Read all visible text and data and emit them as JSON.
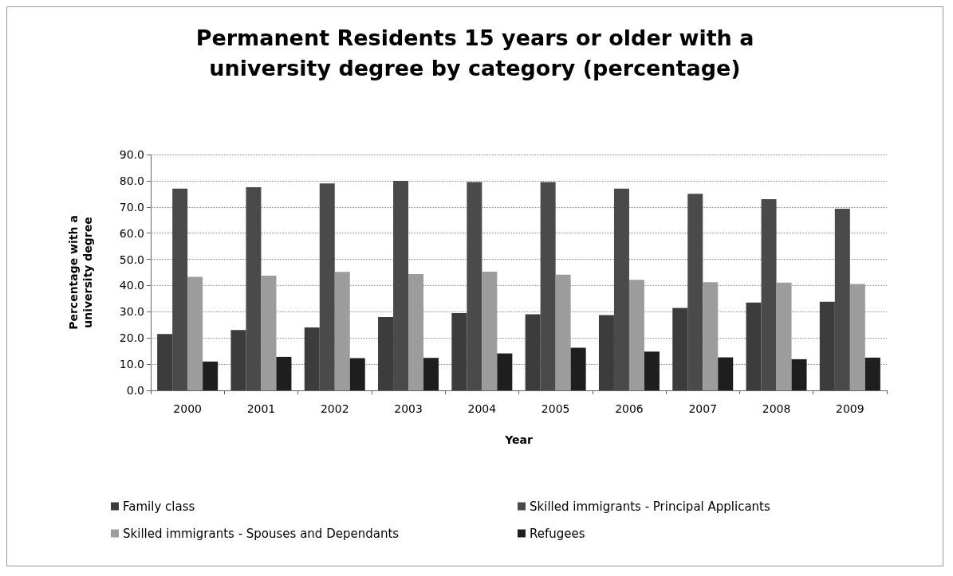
{
  "chart_data": {
    "type": "bar",
    "title": "Permanent Residents 15 years or older with a\nuniversity degree by category (percentage)",
    "xlabel": "Year",
    "ylabel": "Percentage with a\nuniversity degree",
    "categories": [
      "2000",
      "2001",
      "2002",
      "2003",
      "2004",
      "2005",
      "2006",
      "2007",
      "2008",
      "2009"
    ],
    "series": [
      {
        "name": "Family class",
        "color": "#3c3c3c",
        "values": [
          21.5,
          23.0,
          24.0,
          28.0,
          29.5,
          29.0,
          28.7,
          31.5,
          33.5,
          33.8
        ]
      },
      {
        "name": "Skilled immigrants - Principal Applicants",
        "color": "#4a4a4a",
        "values": [
          77.0,
          77.5,
          79.0,
          80.0,
          79.5,
          79.5,
          77.0,
          75.0,
          73.0,
          69.3
        ]
      },
      {
        "name": "Skilled immigrants - Spouses and Dependants",
        "color": "#9c9c9c",
        "values": [
          43.3,
          43.8,
          45.2,
          44.4,
          45.3,
          44.2,
          42.2,
          41.3,
          41.1,
          40.6
        ]
      },
      {
        "name": "Refugees",
        "color": "#1e1e1e",
        "values": [
          11.0,
          12.8,
          12.3,
          12.4,
          14.1,
          16.3,
          14.8,
          12.6,
          11.9,
          12.5
        ]
      }
    ],
    "ylim": [
      0,
      90
    ],
    "yticks": [
      {
        "value": 0,
        "label": "0.0"
      },
      {
        "value": 10,
        "label": "10.0"
      },
      {
        "value": 20,
        "label": "20.0"
      },
      {
        "value": 30,
        "label": "30.0"
      },
      {
        "value": 40,
        "label": "40.0"
      },
      {
        "value": 50,
        "label": "50.0"
      },
      {
        "value": 60,
        "label": "60.0"
      },
      {
        "value": 70,
        "label": "70.0"
      },
      {
        "value": 80,
        "label": "80.0"
      },
      {
        "value": 90,
        "label": "90.0"
      }
    ],
    "grid": "y",
    "legend": "bottom"
  }
}
